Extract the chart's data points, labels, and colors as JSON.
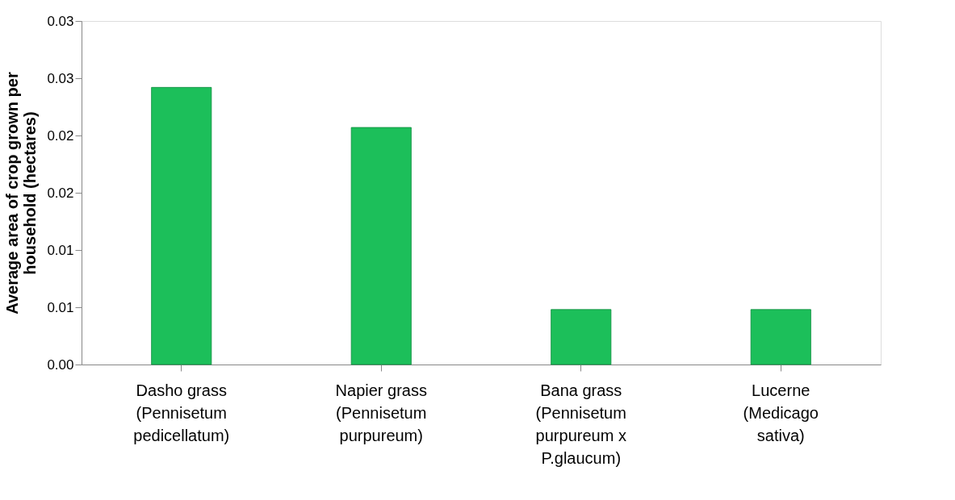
{
  "chart_data": {
    "type": "bar",
    "ylabel": "Average area of crop grown per household (hectares)",
    "categories": [
      "Dasho grass (Pennisetum pedicellatum)",
      "Napier grass (Pennisetum purpureum)",
      "Bana grass (Pennisetum purpureum x P.glaucum)",
      "Lucerne (Medicago sativa)"
    ],
    "values": [
      0.0242,
      0.0207,
      0.0048,
      0.0048
    ],
    "color": "#1cbf5a",
    "ylim": [
      0,
      0.03
    ],
    "yticks": [
      {
        "value": 0,
        "label": "0.00"
      },
      {
        "value": 0.005,
        "label": "0.01"
      },
      {
        "value": 0.01,
        "label": "0.01"
      },
      {
        "value": 0.015,
        "label": "0.02"
      },
      {
        "value": 0.02,
        "label": "0.02"
      },
      {
        "value": 0.025,
        "label": "0.03"
      },
      {
        "value": 0.03,
        "label": "0.03"
      }
    ],
    "grid": false
  }
}
